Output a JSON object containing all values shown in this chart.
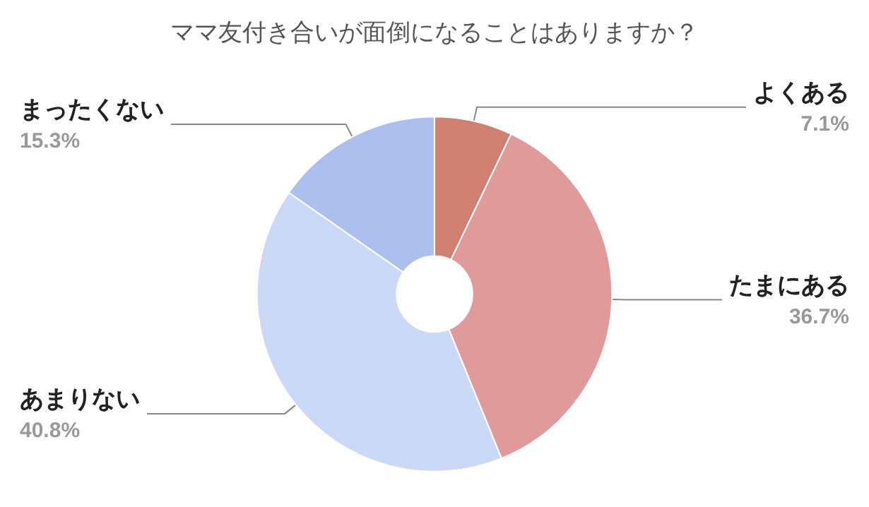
{
  "chart_data": {
    "type": "donut",
    "title": "ママ友付き合いが面倒になることはありますか？",
    "categories": [
      "よくある",
      "たまにある",
      "あまりない",
      "まったくない"
    ],
    "values": [
      7.1,
      36.7,
      40.8,
      15.3
    ],
    "value_labels": [
      "7.1%",
      "36.7%",
      "40.8%",
      "15.3%"
    ],
    "colors": [
      "#d08070",
      "#e09a9a",
      "#cad9f5",
      "#abc0ee"
    ],
    "legend": false
  }
}
